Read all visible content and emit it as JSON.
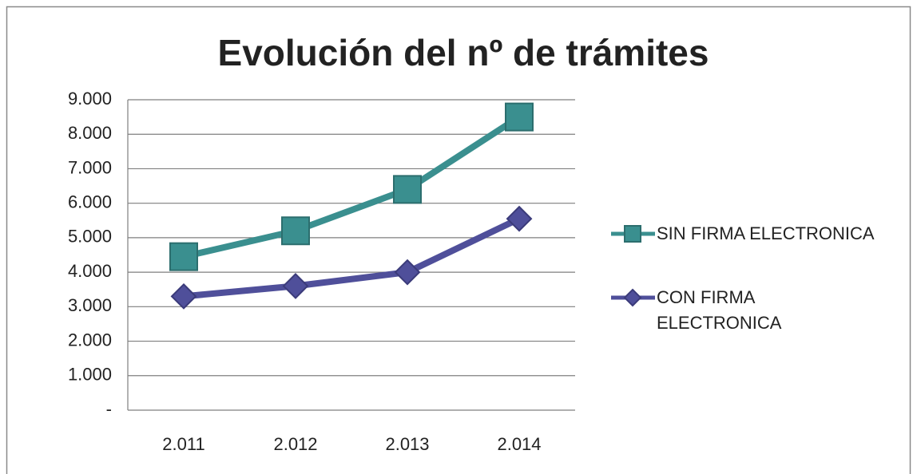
{
  "chart_data": {
    "type": "line",
    "title": "Evolución del nº de trámites",
    "categories": [
      "2.011",
      "2.012",
      "2.013",
      "2.014"
    ],
    "series": [
      {
        "name": "SIN FIRMA ELECTRONICA",
        "color": "#3a8f8f",
        "marker": "square",
        "values": [
          4450,
          5200,
          6400,
          8500
        ]
      },
      {
        "name": "CON FIRMA ELECTRONICA",
        "color": "#4f4f9a",
        "marker": "diamond",
        "values": [
          3300,
          3600,
          4000,
          5550
        ]
      }
    ],
    "ylim": [
      0,
      9000
    ],
    "yticks": [
      {
        "value": 0,
        "label": "-"
      },
      {
        "value": 1000,
        "label": "1.000"
      },
      {
        "value": 2000,
        "label": "2.000"
      },
      {
        "value": 3000,
        "label": "3.000"
      },
      {
        "value": 4000,
        "label": "4.000"
      },
      {
        "value": 5000,
        "label": "5.000"
      },
      {
        "value": 6000,
        "label": "6.000"
      },
      {
        "value": 7000,
        "label": "7.000"
      },
      {
        "value": 8000,
        "label": "8.000"
      },
      {
        "value": 9000,
        "label": "9.000"
      }
    ],
    "grid": true,
    "legend": "right"
  }
}
